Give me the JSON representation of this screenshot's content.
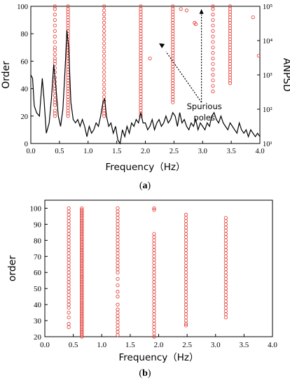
{
  "figures": [
    {
      "caption_open": "(",
      "caption_letter": "a",
      "caption_close": ")"
    },
    {
      "caption_open": "(",
      "caption_letter": "b",
      "caption_close": ")"
    }
  ],
  "chart_data": [
    {
      "type": "scatter",
      "xlabel": "Frequency（Hz）",
      "ylabel": "Order",
      "y2label": "ANPSD",
      "xlim": [
        0.0,
        4.0
      ],
      "ylim": [
        0,
        100
      ],
      "y2lim_log": [
        1,
        5
      ],
      "xticks": [
        "0.0",
        "0.5",
        "1.0",
        "1.5",
        "2.0",
        "2.5",
        "3.0",
        "3.5",
        "4.0"
      ],
      "yticks": [
        "0",
        "20",
        "40",
        "60",
        "80",
        "100"
      ],
      "y2ticks": [
        "10¹",
        "10²",
        "10³",
        "10⁴",
        "10⁵"
      ],
      "annotation": [
        "Spurious",
        "poles"
      ],
      "marker_color": "#e0342c",
      "line_color": "#000000",
      "series": [
        {
          "x": 0.42,
          "orders": [
            20,
            22,
            24,
            28,
            30,
            32,
            35,
            38,
            40,
            42,
            45,
            48,
            52,
            55,
            58,
            60,
            62,
            65,
            68,
            70,
            74,
            78,
            82,
            86,
            90,
            94,
            98,
            100
          ]
        },
        {
          "x": 0.65,
          "orders": [
            20,
            22,
            24,
            26,
            28,
            30,
            32,
            34,
            36,
            38,
            40,
            42,
            44,
            46,
            48,
            50,
            52,
            54,
            56,
            58,
            60,
            62,
            64,
            66,
            68,
            70,
            72,
            74,
            76,
            78,
            80,
            82,
            84,
            86,
            88,
            90,
            92,
            94,
            96,
            98,
            100
          ]
        },
        {
          "x": 1.28,
          "orders": [
            20,
            22,
            24,
            26,
            28,
            31,
            34,
            37,
            40,
            43,
            46,
            49,
            52,
            55,
            58,
            61,
            64,
            67,
            70,
            73,
            76,
            79,
            82,
            85,
            88,
            91,
            94,
            97,
            100
          ]
        },
        {
          "x": 1.92,
          "orders": [
            20,
            22,
            24,
            26,
            28,
            30,
            32,
            34,
            36,
            38,
            40,
            42,
            44,
            46,
            48,
            50,
            52,
            54,
            56,
            58,
            60,
            62,
            64,
            66,
            68,
            70,
            72,
            74,
            76,
            78,
            80,
            82,
            84,
            86,
            88,
            90,
            92,
            94,
            96,
            98,
            100
          ]
        },
        {
          "x": 2.48,
          "orders": [
            30,
            32,
            34,
            36,
            38,
            40,
            42,
            44,
            46,
            48,
            50,
            52,
            54,
            56,
            58,
            60,
            62,
            64,
            66,
            68,
            70,
            72,
            74,
            76,
            78,
            80,
            82,
            84,
            86,
            88,
            90,
            92,
            94,
            96,
            98,
            100
          ]
        },
        {
          "x": 3.18,
          "orders": [
            38,
            42,
            46,
            50,
            54,
            58,
            62,
            66,
            70,
            74,
            78,
            82,
            86,
            90,
            94,
            98,
            100
          ]
        },
        {
          "x": 3.48,
          "orders": [
            44,
            46,
            48,
            50,
            52,
            54,
            56,
            58,
            60,
            62,
            64,
            66,
            68,
            70,
            72,
            74,
            76,
            78,
            80,
            82,
            84,
            86,
            88,
            90,
            92,
            94,
            96,
            98,
            100
          ]
        },
        {
          "x_list": [
            2.08,
            2.62,
            2.72,
            2.86,
            2.88,
            3.88,
            3.98
          ],
          "y_list": [
            62,
            98,
            97,
            88,
            87,
            92,
            64
          ]
        }
      ],
      "anpsd_log": [
        [
          0.0,
          3.0
        ],
        [
          0.03,
          2.9
        ],
        [
          0.06,
          2.1
        ],
        [
          0.1,
          1.9
        ],
        [
          0.15,
          1.8
        ],
        [
          0.2,
          2.9
        ],
        [
          0.23,
          2.3
        ],
        [
          0.27,
          1.3
        ],
        [
          0.32,
          1.6
        ],
        [
          0.36,
          2.3
        ],
        [
          0.4,
          3.3
        ],
        [
          0.44,
          2.6
        ],
        [
          0.48,
          1.8
        ],
        [
          0.52,
          1.5
        ],
        [
          0.56,
          2.0
        ],
        [
          0.6,
          3.2
        ],
        [
          0.63,
          4.3
        ],
        [
          0.66,
          3.8
        ],
        [
          0.7,
          2.2
        ],
        [
          0.74,
          1.7
        ],
        [
          0.78,
          1.6
        ],
        [
          0.82,
          1.7
        ],
        [
          0.86,
          1.5
        ],
        [
          0.9,
          1.7
        ],
        [
          0.94,
          1.5
        ],
        [
          0.98,
          1.2
        ],
        [
          1.02,
          1.5
        ],
        [
          1.06,
          1.3
        ],
        [
          1.1,
          1.4
        ],
        [
          1.14,
          1.6
        ],
        [
          1.18,
          1.5
        ],
        [
          1.22,
          1.8
        ],
        [
          1.26,
          2.2
        ],
        [
          1.29,
          2.3
        ],
        [
          1.32,
          1.8
        ],
        [
          1.36,
          1.5
        ],
        [
          1.4,
          1.6
        ],
        [
          1.44,
          1.3
        ],
        [
          1.48,
          1.5
        ],
        [
          1.52,
          1.1
        ],
        [
          1.56,
          1.0
        ],
        [
          1.6,
          1.4
        ],
        [
          1.64,
          1.2
        ],
        [
          1.68,
          1.5
        ],
        [
          1.72,
          1.3
        ],
        [
          1.76,
          1.6
        ],
        [
          1.8,
          1.5
        ],
        [
          1.84,
          1.7
        ],
        [
          1.88,
          1.6
        ],
        [
          1.92,
          1.9
        ],
        [
          1.96,
          1.6
        ],
        [
          2.0,
          1.6
        ],
        [
          2.04,
          1.4
        ],
        [
          2.08,
          1.5
        ],
        [
          2.12,
          1.7
        ],
        [
          2.16,
          1.4
        ],
        [
          2.2,
          1.6
        ],
        [
          2.24,
          1.7
        ],
        [
          2.28,
          1.5
        ],
        [
          2.32,
          1.6
        ],
        [
          2.36,
          1.8
        ],
        [
          2.4,
          1.6
        ],
        [
          2.44,
          1.7
        ],
        [
          2.48,
          1.9
        ],
        [
          2.52,
          1.8
        ],
        [
          2.56,
          1.5
        ],
        [
          2.6,
          1.9
        ],
        [
          2.64,
          1.6
        ],
        [
          2.68,
          1.7
        ],
        [
          2.72,
          1.5
        ],
        [
          2.76,
          1.4
        ],
        [
          2.8,
          1.6
        ],
        [
          2.84,
          1.5
        ],
        [
          2.88,
          1.7
        ],
        [
          2.92,
          1.4
        ],
        [
          2.96,
          1.6
        ],
        [
          3.0,
          1.5
        ],
        [
          3.04,
          1.4
        ],
        [
          3.08,
          1.6
        ],
        [
          3.12,
          1.5
        ],
        [
          3.16,
          1.8
        ],
        [
          3.2,
          1.9
        ],
        [
          3.24,
          1.7
        ],
        [
          3.28,
          1.6
        ],
        [
          3.32,
          1.8
        ],
        [
          3.36,
          1.6
        ],
        [
          3.4,
          1.5
        ],
        [
          3.44,
          1.4
        ],
        [
          3.48,
          1.6
        ],
        [
          3.52,
          1.5
        ],
        [
          3.56,
          1.4
        ],
        [
          3.6,
          1.3
        ],
        [
          3.64,
          1.6
        ],
        [
          3.68,
          1.4
        ],
        [
          3.72,
          1.3
        ],
        [
          3.76,
          1.4
        ],
        [
          3.8,
          1.2
        ],
        [
          3.84,
          1.4
        ],
        [
          3.88,
          1.3
        ],
        [
          3.92,
          1.2
        ],
        [
          3.96,
          1.3
        ],
        [
          4.0,
          1.2
        ]
      ]
    },
    {
      "type": "scatter",
      "xlabel": "Frequency（Hz）",
      "ylabel": "order",
      "xlim": [
        0.0,
        4.0
      ],
      "ylim": [
        20,
        105
      ],
      "xticks": [
        "0.0",
        "0.5",
        "1.0",
        "1.5",
        "2.0",
        "2.5",
        "3.0",
        "3.5",
        "4.0"
      ],
      "yticks": [
        "20",
        "30",
        "40",
        "50",
        "60",
        "70",
        "80",
        "90",
        "100"
      ],
      "marker_color": "#e0342c",
      "series": [
        {
          "x": 0.42,
          "orders": [
            26,
            28,
            32,
            35,
            38,
            40,
            42,
            44,
            46,
            48,
            50,
            52,
            54,
            56,
            58,
            60,
            62,
            64,
            66,
            68,
            70,
            72,
            74,
            76,
            78,
            80,
            82,
            84,
            86,
            88,
            90,
            92,
            94,
            96,
            98,
            100
          ]
        },
        {
          "x": 0.65,
          "orders": [
            20,
            21,
            22,
            23,
            24,
            25,
            26,
            27,
            28,
            29,
            30,
            31,
            32,
            33,
            34,
            35,
            36,
            37,
            38,
            39,
            40,
            41,
            42,
            43,
            44,
            45,
            46,
            47,
            48,
            49,
            50,
            51,
            52,
            53,
            54,
            55,
            56,
            57,
            58,
            59,
            60,
            61,
            62,
            63,
            64,
            65,
            66,
            67,
            68,
            69,
            70,
            71,
            72,
            73,
            74,
            75,
            76,
            77,
            78,
            79,
            80,
            81,
            82,
            83,
            84,
            85,
            86,
            87,
            88,
            89,
            90,
            91,
            92,
            93,
            94,
            95,
            96,
            97,
            98,
            99,
            100
          ]
        },
        {
          "x": 1.28,
          "orders": [
            21,
            23,
            25,
            27,
            29,
            31,
            33,
            35,
            37,
            40,
            45,
            48,
            52,
            56,
            60,
            62,
            64,
            66,
            68,
            70,
            72,
            74,
            76,
            78,
            80,
            82,
            84,
            86,
            88,
            90,
            92,
            94,
            96,
            98,
            100
          ]
        },
        {
          "x": 1.92,
          "orders": [
            20,
            22,
            24,
            26,
            28,
            30,
            32,
            34,
            36,
            38,
            40,
            42,
            44,
            46,
            48,
            50,
            52,
            54,
            56,
            58,
            60,
            62,
            64,
            66,
            68,
            70,
            72,
            74,
            76,
            78,
            80,
            82,
            84,
            99,
            100
          ]
        },
        {
          "x": 2.48,
          "orders": [
            27,
            28,
            30,
            32,
            34,
            36,
            38,
            40,
            42,
            44,
            46,
            48,
            50,
            52,
            54,
            56,
            58,
            60,
            62,
            64,
            66,
            68,
            70,
            72,
            74,
            76,
            78,
            80,
            82,
            84,
            86,
            88,
            90,
            92,
            94,
            96
          ]
        },
        {
          "x": 3.18,
          "orders": [
            32,
            34,
            36,
            38,
            40,
            42,
            44,
            46,
            48,
            50,
            52,
            54,
            56,
            58,
            60,
            62,
            64,
            66,
            68,
            70,
            72,
            74,
            76,
            78,
            80,
            82,
            84,
            86,
            88,
            90,
            92,
            94
          ]
        }
      ]
    }
  ]
}
